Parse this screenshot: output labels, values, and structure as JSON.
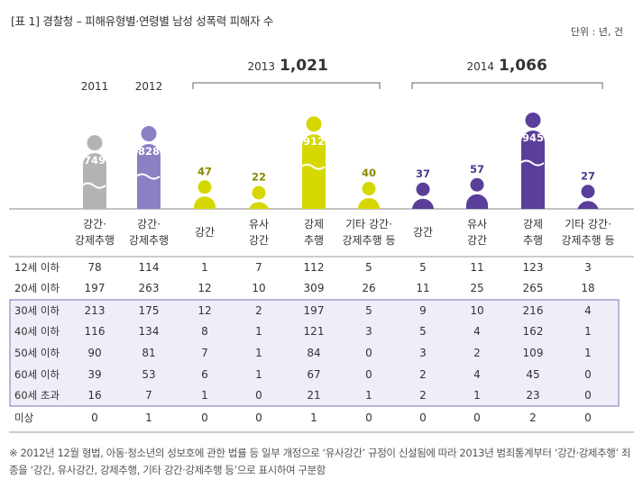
{
  "header": {
    "table_tag": "[표 1]",
    "title": "경찰청 – 피해유형별·연령별 남성 성폭력 피해자 수",
    "unit": "단위 : 년, 건"
  },
  "footnote": "※ 2012년 12월 형법, 아동·청소년의 성보호에 관한 법률 등 일부 개정으로 ‘유사강간’ 규정이 신설됨에 따라 2013년 범죄통계부터 ‘강간·강제추행’ 죄종을 ‘강간, 유사강간, 강제추행, 기타 강간·강제추행 등’으로 표시하여 구분함",
  "colors": {
    "y2011": "#b3b3b3",
    "y2012": "#8a80c4",
    "y2013": "#d5d800",
    "y2014": "#5a3f9a",
    "highlight_bg": "#efeef8",
    "highlight_border": "#7d72b8"
  },
  "chart_data": {
    "type": "bar",
    "year_groups": [
      {
        "label": "2011",
        "total": ""
      },
      {
        "label": "2012",
        "total": ""
      },
      {
        "label": "2013",
        "total": "1,021"
      },
      {
        "label": "2014",
        "total": "1,066"
      }
    ],
    "columns": [
      {
        "year": "2011",
        "label": [
          "강간·",
          "강제추행"
        ],
        "value": 749
      },
      {
        "year": "2012",
        "label": [
          "강간·",
          "강제추행"
        ],
        "value": 828
      },
      {
        "year": "2013",
        "label": [
          "강간"
        ],
        "value": 47
      },
      {
        "year": "2013",
        "label": [
          "유사",
          "강간"
        ],
        "value": 22
      },
      {
        "year": "2013",
        "label": [
          "강제",
          "추행"
        ],
        "value": 912
      },
      {
        "year": "2013",
        "label": [
          "기타 강간·",
          "강제추행 등"
        ],
        "value": 40
      },
      {
        "year": "2014",
        "label": [
          "강간"
        ],
        "value": 37
      },
      {
        "year": "2014",
        "label": [
          "유사",
          "강간"
        ],
        "value": 57
      },
      {
        "year": "2014",
        "label": [
          "강제",
          "추행"
        ],
        "value": 945
      },
      {
        "year": "2014",
        "label": [
          "기타 강간·",
          "강제추행 등"
        ],
        "value": 27
      }
    ],
    "rows": [
      {
        "label": "12세 이하",
        "values": [
          78,
          114,
          1,
          7,
          112,
          5,
          5,
          11,
          123,
          3
        ]
      },
      {
        "label": "20세 이하",
        "values": [
          197,
          263,
          12,
          10,
          309,
          26,
          11,
          25,
          265,
          18
        ]
      },
      {
        "label": "30세 이하",
        "values": [
          213,
          175,
          12,
          2,
          197,
          5,
          9,
          10,
          216,
          4
        ]
      },
      {
        "label": "40세 이하",
        "values": [
          116,
          134,
          8,
          1,
          121,
          3,
          5,
          4,
          162,
          1
        ]
      },
      {
        "label": "50세 이하",
        "values": [
          90,
          81,
          7,
          1,
          84,
          0,
          3,
          2,
          109,
          1
        ]
      },
      {
        "label": "60세 이하",
        "values": [
          39,
          53,
          6,
          1,
          67,
          0,
          2,
          4,
          45,
          0
        ]
      },
      {
        "label": "60세 초과",
        "values": [
          16,
          7,
          1,
          0,
          21,
          1,
          2,
          1,
          23,
          0
        ]
      },
      {
        "label": "미상",
        "values": [
          0,
          1,
          0,
          0,
          1,
          0,
          0,
          0,
          2,
          0
        ]
      }
    ],
    "highlighted_rows": [
      "30세 이하",
      "60세 초과"
    ]
  }
}
